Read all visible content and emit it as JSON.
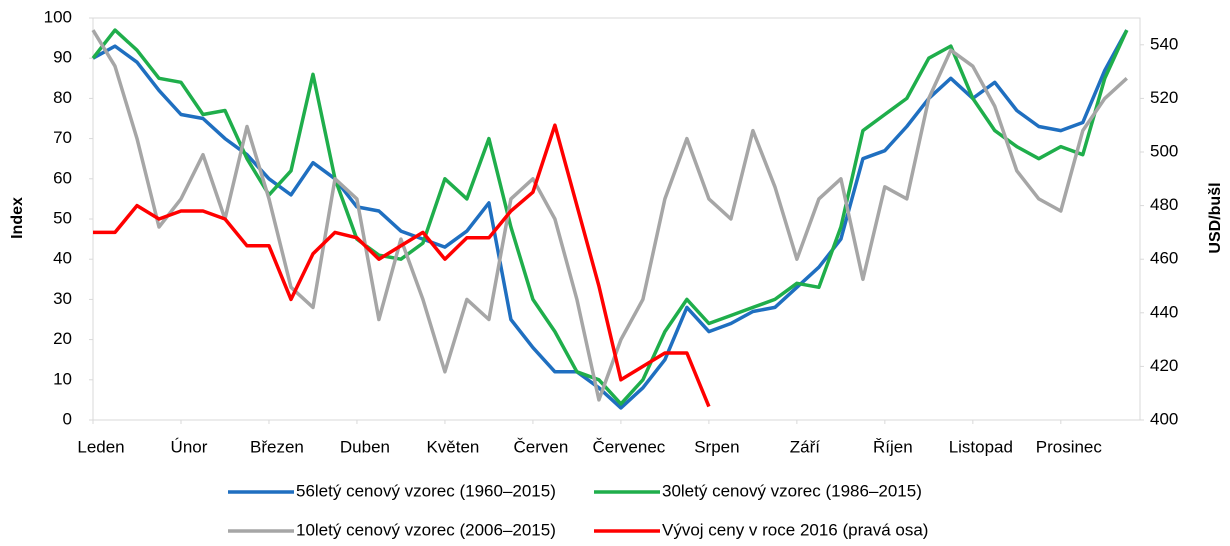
{
  "chart_data": {
    "type": "line",
    "y_label": "Index",
    "y2_label": "USD/bušl",
    "x": [
      0,
      0.25,
      0.5,
      0.75,
      1,
      1.25,
      1.5,
      1.75,
      2,
      2.25,
      2.5,
      2.75,
      3,
      3.25,
      3.5,
      3.75,
      4,
      4.25,
      4.5,
      4.75,
      5,
      5.25,
      5.5,
      5.75,
      6,
      6.25,
      6.5,
      6.75,
      7,
      7.25,
      7.5,
      7.75,
      8,
      8.25,
      8.5,
      8.75,
      9,
      9.25,
      9.5,
      9.75,
      10,
      10.25,
      10.5,
      10.75,
      11,
      11.25,
      11.5,
      11.75
    ],
    "xlim": [
      0,
      11.9
    ],
    "xticks": [
      {
        "value": 0,
        "label": "Leden"
      },
      {
        "value": 1,
        "label": "Únor"
      },
      {
        "value": 2,
        "label": "Březen"
      },
      {
        "value": 3,
        "label": "Duben"
      },
      {
        "value": 4,
        "label": "Květen"
      },
      {
        "value": 5,
        "label": "Červen"
      },
      {
        "value": 6,
        "label": "Červenec"
      },
      {
        "value": 7,
        "label": "Srpen"
      },
      {
        "value": 8,
        "label": "Září"
      },
      {
        "value": 9,
        "label": "Říjen"
      },
      {
        "value": 10,
        "label": "Listopad"
      },
      {
        "value": 11,
        "label": "Prosinec"
      }
    ],
    "ylim": [
      0,
      100
    ],
    "yticks": [
      0,
      10,
      20,
      30,
      40,
      50,
      60,
      70,
      80,
      90,
      100
    ],
    "y2lim": [
      400,
      550
    ],
    "y2ticks": [
      400,
      420,
      440,
      460,
      480,
      500,
      520,
      540
    ],
    "series": [
      {
        "name": "56letý cenový vzorec (1960–2015)",
        "color": "#1f6fc0",
        "values": [
          90,
          93,
          89,
          82,
          76,
          75,
          70,
          66,
          60,
          56,
          64,
          60,
          53,
          52,
          47,
          45,
          43,
          47,
          54,
          25,
          18,
          12,
          12,
          8,
          3,
          8,
          15,
          28,
          22,
          24,
          27,
          28,
          33,
          38,
          45,
          65,
          67,
          73,
          80,
          85,
          80,
          84,
          77,
          73,
          72,
          74,
          87,
          97
        ]
      },
      {
        "name": "30letý cenový vzorec (1986–2015)",
        "color": "#1fae4b",
        "values": [
          90,
          97,
          92,
          85,
          84,
          76,
          77,
          65,
          56,
          62,
          86,
          60,
          45,
          41,
          40,
          44,
          60,
          55,
          70,
          48,
          30,
          22,
          12,
          10,
          4,
          10,
          22,
          30,
          24,
          26,
          28,
          30,
          34,
          33,
          48,
          72,
          76,
          80,
          90,
          93,
          80,
          72,
          68,
          65,
          68,
          66,
          85,
          97
        ]
      },
      {
        "name": "10letý cenový vzorec (2006–2015)",
        "color": "#a6a6a6",
        "values": [
          97,
          88,
          70,
          48,
          55,
          66,
          50,
          73,
          55,
          33,
          28,
          60,
          55,
          25,
          45,
          30,
          12,
          30,
          25,
          55,
          60,
          50,
          30,
          5,
          20,
          30,
          55,
          70,
          55,
          50,
          72,
          58,
          40,
          55,
          60,
          35,
          58,
          55,
          80,
          92,
          88,
          78,
          62,
          55,
          52,
          72,
          80,
          85
        ]
      },
      {
        "name": "Vývoj ceny v roce 2016 (pravá osa)",
        "color": "#ff0000",
        "axis": "y2",
        "values": [
          470,
          470,
          480,
          475,
          478,
          478,
          475,
          465,
          465,
          445,
          462,
          470,
          468,
          460,
          465,
          470,
          460,
          468,
          468,
          478,
          485,
          510,
          480,
          450,
          415,
          420,
          425,
          425,
          405,
          null,
          null,
          null,
          null,
          null,
          null,
          null,
          null,
          null,
          null,
          null,
          null,
          null,
          null,
          null,
          null,
          null,
          null,
          null
        ]
      }
    ]
  }
}
